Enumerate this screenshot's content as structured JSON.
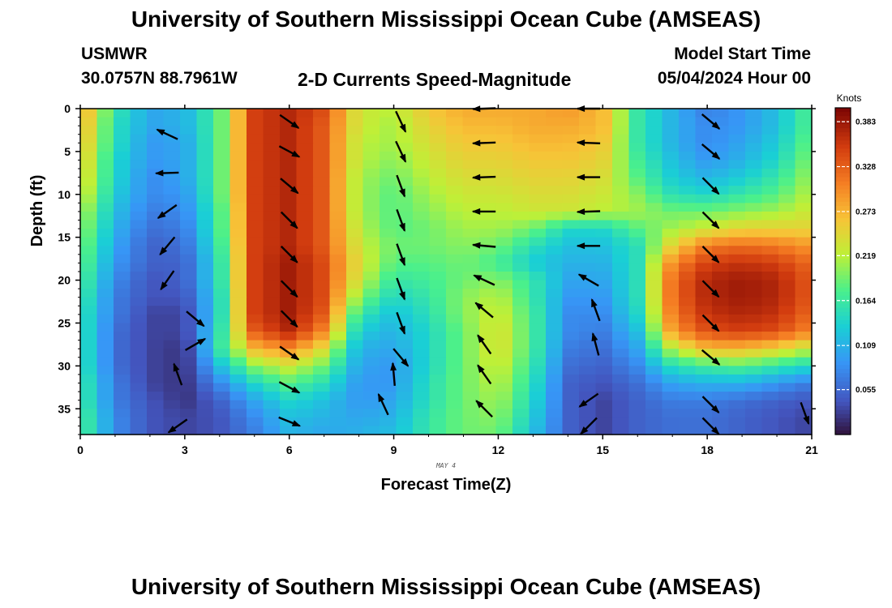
{
  "title": "University of Southern Mississippi Ocean Cube (AMSEAS)",
  "station": "USMWR",
  "coords": "30.0757N  88.7961W",
  "subtitle": "2-D Currents Speed-Magnitude",
  "model_start_label": "Model Start Time",
  "model_start_date": "05/04/2024 Hour 00",
  "chart_data": {
    "type": "heatmap",
    "title": "2-D Currents Speed-Magnitude",
    "xlabel": "Forecast Time(Z)",
    "ylabel": "Depth (ft)",
    "day_label": "MAY 4",
    "xlim": [
      0,
      21
    ],
    "ylim": [
      0,
      38
    ],
    "x_ticks": [
      0,
      3,
      6,
      9,
      12,
      15,
      18,
      21
    ],
    "y_ticks": [
      0,
      5,
      10,
      15,
      20,
      25,
      30,
      35
    ],
    "colorbar": {
      "label": "Knots",
      "range": [
        0.0,
        0.4
      ],
      "ticks": [
        0.383,
        0.328,
        0.273,
        0.219,
        0.164,
        0.109,
        0.055
      ]
    },
    "times": [
      0,
      1,
      2,
      3,
      4,
      5,
      6,
      7,
      8,
      9,
      10,
      11,
      12,
      13,
      14,
      15,
      16,
      17,
      18,
      19,
      20,
      21
    ],
    "depths": [
      0,
      2,
      4,
      6,
      8,
      10,
      12,
      14,
      16,
      18,
      20,
      22,
      24,
      26,
      28,
      30,
      32,
      34,
      36,
      38
    ],
    "speed_knots": [
      [
        0.29,
        0.16,
        0.1,
        0.11,
        0.18,
        0.35,
        0.37,
        0.34,
        0.23,
        0.22,
        0.26,
        0.28,
        0.28,
        0.28,
        0.29,
        0.27,
        0.16,
        0.11,
        0.07,
        0.09,
        0.12,
        0.18
      ],
      [
        0.28,
        0.15,
        0.1,
        0.11,
        0.18,
        0.35,
        0.37,
        0.33,
        0.23,
        0.21,
        0.25,
        0.27,
        0.27,
        0.28,
        0.28,
        0.27,
        0.16,
        0.11,
        0.08,
        0.09,
        0.12,
        0.18
      ],
      [
        0.27,
        0.15,
        0.09,
        0.1,
        0.18,
        0.35,
        0.37,
        0.33,
        0.22,
        0.21,
        0.24,
        0.26,
        0.26,
        0.27,
        0.27,
        0.26,
        0.16,
        0.11,
        0.08,
        0.1,
        0.13,
        0.19
      ],
      [
        0.26,
        0.14,
        0.09,
        0.1,
        0.18,
        0.35,
        0.37,
        0.33,
        0.22,
        0.2,
        0.23,
        0.25,
        0.25,
        0.26,
        0.26,
        0.25,
        0.17,
        0.12,
        0.09,
        0.11,
        0.14,
        0.2
      ],
      [
        0.25,
        0.14,
        0.08,
        0.1,
        0.18,
        0.35,
        0.37,
        0.33,
        0.21,
        0.19,
        0.22,
        0.24,
        0.24,
        0.25,
        0.25,
        0.24,
        0.18,
        0.13,
        0.11,
        0.13,
        0.16,
        0.21
      ],
      [
        0.24,
        0.13,
        0.08,
        0.09,
        0.18,
        0.35,
        0.37,
        0.33,
        0.21,
        0.18,
        0.21,
        0.23,
        0.23,
        0.24,
        0.24,
        0.23,
        0.2,
        0.15,
        0.14,
        0.16,
        0.18,
        0.22
      ],
      [
        0.22,
        0.12,
        0.07,
        0.08,
        0.17,
        0.35,
        0.37,
        0.33,
        0.21,
        0.18,
        0.2,
        0.22,
        0.22,
        0.23,
        0.23,
        0.22,
        0.21,
        0.19,
        0.19,
        0.2,
        0.21,
        0.23
      ],
      [
        0.21,
        0.11,
        0.06,
        0.07,
        0.17,
        0.35,
        0.37,
        0.33,
        0.22,
        0.18,
        0.19,
        0.21,
        0.21,
        0.19,
        0.14,
        0.14,
        0.18,
        0.21,
        0.23,
        0.25,
        0.25,
        0.25
      ],
      [
        0.2,
        0.1,
        0.05,
        0.06,
        0.16,
        0.35,
        0.37,
        0.33,
        0.23,
        0.19,
        0.19,
        0.2,
        0.19,
        0.15,
        0.12,
        0.12,
        0.15,
        0.25,
        0.31,
        0.32,
        0.31,
        0.29
      ],
      [
        0.19,
        0.09,
        0.05,
        0.05,
        0.15,
        0.35,
        0.38,
        0.34,
        0.24,
        0.18,
        0.18,
        0.19,
        0.17,
        0.13,
        0.11,
        0.11,
        0.15,
        0.3,
        0.35,
        0.36,
        0.35,
        0.32
      ],
      [
        0.18,
        0.08,
        0.04,
        0.05,
        0.15,
        0.35,
        0.38,
        0.34,
        0.23,
        0.16,
        0.17,
        0.19,
        0.2,
        0.16,
        0.1,
        0.1,
        0.15,
        0.32,
        0.37,
        0.38,
        0.37,
        0.33
      ],
      [
        0.17,
        0.07,
        0.04,
        0.04,
        0.14,
        0.35,
        0.38,
        0.34,
        0.2,
        0.14,
        0.16,
        0.2,
        0.22,
        0.16,
        0.09,
        0.09,
        0.15,
        0.32,
        0.37,
        0.38,
        0.37,
        0.33
      ],
      [
        0.16,
        0.07,
        0.03,
        0.03,
        0.14,
        0.35,
        0.38,
        0.33,
        0.16,
        0.12,
        0.15,
        0.2,
        0.23,
        0.17,
        0.08,
        0.08,
        0.14,
        0.31,
        0.36,
        0.37,
        0.36,
        0.32
      ],
      [
        0.16,
        0.06,
        0.03,
        0.03,
        0.15,
        0.33,
        0.37,
        0.3,
        0.13,
        0.11,
        0.14,
        0.19,
        0.24,
        0.17,
        0.08,
        0.07,
        0.12,
        0.29,
        0.34,
        0.35,
        0.34,
        0.3
      ],
      [
        0.16,
        0.06,
        0.03,
        0.02,
        0.16,
        0.27,
        0.3,
        0.24,
        0.11,
        0.1,
        0.14,
        0.19,
        0.24,
        0.17,
        0.07,
        0.06,
        0.1,
        0.22,
        0.27,
        0.27,
        0.25,
        0.22
      ],
      [
        0.16,
        0.06,
        0.03,
        0.02,
        0.12,
        0.2,
        0.23,
        0.19,
        0.1,
        0.09,
        0.14,
        0.19,
        0.23,
        0.16,
        0.06,
        0.05,
        0.08,
        0.15,
        0.17,
        0.18,
        0.16,
        0.14
      ],
      [
        0.17,
        0.07,
        0.03,
        0.02,
        0.08,
        0.14,
        0.18,
        0.15,
        0.09,
        0.09,
        0.15,
        0.19,
        0.22,
        0.15,
        0.05,
        0.04,
        0.06,
        0.1,
        0.11,
        0.11,
        0.09,
        0.07
      ],
      [
        0.17,
        0.07,
        0.04,
        0.02,
        0.05,
        0.1,
        0.14,
        0.12,
        0.09,
        0.1,
        0.15,
        0.19,
        0.21,
        0.14,
        0.05,
        0.03,
        0.05,
        0.07,
        0.07,
        0.06,
        0.05,
        0.04
      ],
      [
        0.18,
        0.08,
        0.04,
        0.03,
        0.04,
        0.08,
        0.12,
        0.11,
        0.1,
        0.11,
        0.16,
        0.19,
        0.2,
        0.13,
        0.05,
        0.03,
        0.05,
        0.06,
        0.06,
        0.05,
        0.04,
        0.03
      ],
      [
        0.18,
        0.08,
        0.04,
        0.03,
        0.04,
        0.07,
        0.11,
        0.1,
        0.11,
        0.12,
        0.16,
        0.19,
        0.19,
        0.12,
        0.05,
        0.03,
        0.05,
        0.06,
        0.06,
        0.05,
        0.04,
        0.03
      ]
    ],
    "vectors": [
      {
        "time": 2.5,
        "depth": 3,
        "dir_deg": 295
      },
      {
        "time": 2.5,
        "depth": 7.5,
        "dir_deg": 268
      },
      {
        "time": 2.5,
        "depth": 12,
        "dir_deg": 235
      },
      {
        "time": 2.5,
        "depth": 16,
        "dir_deg": 220
      },
      {
        "time": 2.5,
        "depth": 20,
        "dir_deg": 215
      },
      {
        "time": 3.3,
        "depth": 24.5,
        "dir_deg": 130
      },
      {
        "time": 3.3,
        "depth": 27.5,
        "dir_deg": 60
      },
      {
        "time": 2.8,
        "depth": 31,
        "dir_deg": 340
      },
      {
        "time": 2.8,
        "depth": 37,
        "dir_deg": 235
      },
      {
        "time": 6.0,
        "depth": 1.5,
        "dir_deg": 125
      },
      {
        "time": 6.0,
        "depth": 5,
        "dir_deg": 118
      },
      {
        "time": 6.0,
        "depth": 9,
        "dir_deg": 130
      },
      {
        "time": 6.0,
        "depth": 13,
        "dir_deg": 135
      },
      {
        "time": 6.0,
        "depth": 17,
        "dir_deg": 135
      },
      {
        "time": 6.0,
        "depth": 21,
        "dir_deg": 135
      },
      {
        "time": 6.0,
        "depth": 24.5,
        "dir_deg": 135
      },
      {
        "time": 6.0,
        "depth": 28.5,
        "dir_deg": 125
      },
      {
        "time": 6.0,
        "depth": 32.5,
        "dir_deg": 118
      },
      {
        "time": 6.0,
        "depth": 36.5,
        "dir_deg": 112
      },
      {
        "time": 9.2,
        "depth": 1.5,
        "dir_deg": 155
      },
      {
        "time": 9.2,
        "depth": 5,
        "dir_deg": 155
      },
      {
        "time": 9.2,
        "depth": 9,
        "dir_deg": 160
      },
      {
        "time": 9.2,
        "depth": 13,
        "dir_deg": 160
      },
      {
        "time": 9.2,
        "depth": 17,
        "dir_deg": 160
      },
      {
        "time": 9.2,
        "depth": 21,
        "dir_deg": 160
      },
      {
        "time": 9.2,
        "depth": 25,
        "dir_deg": 160
      },
      {
        "time": 9.2,
        "depth": 29,
        "dir_deg": 140
      },
      {
        "time": 9.0,
        "depth": 31,
        "dir_deg": 355
      },
      {
        "time": 8.7,
        "depth": 34.5,
        "dir_deg": 335
      },
      {
        "time": 11.6,
        "depth": 0,
        "dir_deg": 268
      },
      {
        "time": 11.6,
        "depth": 4,
        "dir_deg": 268
      },
      {
        "time": 11.6,
        "depth": 8,
        "dir_deg": 268
      },
      {
        "time": 11.6,
        "depth": 12,
        "dir_deg": 270
      },
      {
        "time": 11.6,
        "depth": 16,
        "dir_deg": 275
      },
      {
        "time": 11.6,
        "depth": 20,
        "dir_deg": 295
      },
      {
        "time": 11.6,
        "depth": 23.5,
        "dir_deg": 310
      },
      {
        "time": 11.6,
        "depth": 27.5,
        "dir_deg": 325
      },
      {
        "time": 11.6,
        "depth": 31,
        "dir_deg": 325
      },
      {
        "time": 11.6,
        "depth": 35,
        "dir_deg": 315
      },
      {
        "time": 14.6,
        "depth": 0,
        "dir_deg": 270
      },
      {
        "time": 14.6,
        "depth": 4,
        "dir_deg": 272
      },
      {
        "time": 14.6,
        "depth": 8,
        "dir_deg": 270
      },
      {
        "time": 14.6,
        "depth": 12,
        "dir_deg": 268
      },
      {
        "time": 14.6,
        "depth": 16,
        "dir_deg": 270
      },
      {
        "time": 14.6,
        "depth": 20,
        "dir_deg": 300
      },
      {
        "time": 14.8,
        "depth": 23.5,
        "dir_deg": 340
      },
      {
        "time": 14.8,
        "depth": 27.5,
        "dir_deg": 345
      },
      {
        "time": 14.6,
        "depth": 34,
        "dir_deg": 235
      },
      {
        "time": 14.6,
        "depth": 37,
        "dir_deg": 225
      },
      {
        "time": 18.1,
        "depth": 1.5,
        "dir_deg": 130
      },
      {
        "time": 18.1,
        "depth": 5,
        "dir_deg": 130
      },
      {
        "time": 18.1,
        "depth": 9,
        "dir_deg": 135
      },
      {
        "time": 18.1,
        "depth": 13,
        "dir_deg": 135
      },
      {
        "time": 18.1,
        "depth": 17,
        "dir_deg": 135
      },
      {
        "time": 18.1,
        "depth": 21,
        "dir_deg": 135
      },
      {
        "time": 18.1,
        "depth": 25,
        "dir_deg": 135
      },
      {
        "time": 18.1,
        "depth": 29,
        "dir_deg": 130
      },
      {
        "time": 18.1,
        "depth": 34.5,
        "dir_deg": 135
      },
      {
        "time": 18.1,
        "depth": 37,
        "dir_deg": 135
      },
      {
        "time": 20.8,
        "depth": 35.5,
        "dir_deg": 160
      }
    ]
  }
}
